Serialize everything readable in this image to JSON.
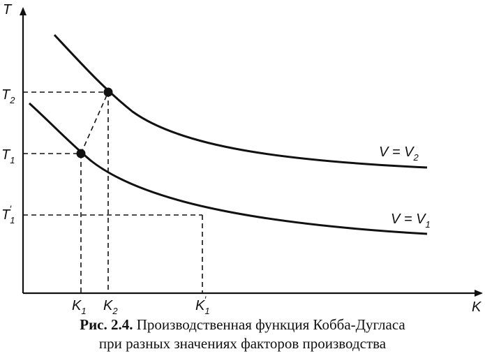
{
  "axes": {
    "x_label": "K",
    "y_label": "T"
  },
  "ticks": {
    "x": [
      {
        "base": "K",
        "sub": "1",
        "prime": false
      },
      {
        "base": "K",
        "sub": "2",
        "prime": false
      },
      {
        "base": "K",
        "sub": "1",
        "prime": true
      }
    ],
    "y": [
      {
        "base": "T",
        "sub": "2",
        "prime": false
      },
      {
        "base": "T",
        "sub": "1",
        "prime": false
      },
      {
        "base": "T",
        "sub": "1",
        "prime": true
      }
    ]
  },
  "curves": [
    {
      "label_main": "V = V",
      "label_sub": "2"
    },
    {
      "label_main": "V = V",
      "label_sub": "1"
    }
  ],
  "caption": {
    "number": "Рис. 2.4.",
    "line1_text": " Производственная функция Кобба-Дугласа",
    "line2_text": "при разных значениях факторов производства"
  },
  "colors": {
    "ink": "#111111",
    "background": "#ffffff"
  }
}
